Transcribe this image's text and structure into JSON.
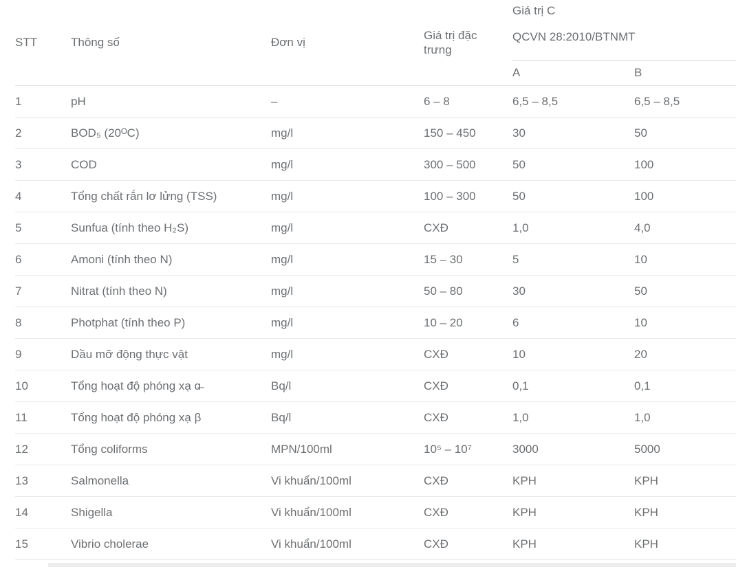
{
  "table": {
    "title_semantic": "Thông số nước thải - QCVN 28:2010/BTNMT",
    "headers": {
      "stt": "STT",
      "param": "Thông số",
      "unit": "Đơn vị",
      "typical": "Giá trị đặc trưng",
      "group_line1": "Giá trị C",
      "group_line2": "QCVN 28:2010/BTNMT",
      "col_a": "A",
      "col_b": "B"
    },
    "rows": [
      {
        "stt": "1",
        "param": "pH",
        "unit": "–",
        "typical": "6 – 8",
        "a": "6,5 – 8,5",
        "b": "6,5 – 8,5"
      },
      {
        "stt": "2",
        "param": "BOD₅ (20ᴼC)",
        "unit": "mg/l",
        "typical": "150 – 450",
        "a": "30",
        "b": "50"
      },
      {
        "stt": "3",
        "param": "COD",
        "unit": "mg/l",
        "typical": "300 – 500",
        "a": "50",
        "b": "100"
      },
      {
        "stt": "4",
        "param": "Tổng chất rắn lơ lửng (TSS)",
        "unit": "mg/l",
        "typical": "100 – 300",
        "a": "50",
        "b": "100"
      },
      {
        "stt": "5",
        "param": "Sunfua (tính theo H₂S)",
        "unit": "mg/l",
        "typical": "CXĐ",
        "a": "1,0",
        "b": "4,0"
      },
      {
        "stt": "6",
        "param": "Amoni (tính theo N)",
        "unit": "mg/l",
        "typical": "15 – 30",
        "a": "5",
        "b": "10"
      },
      {
        "stt": "7",
        "param": "Nitrat (tính theo N)",
        "unit": "mg/l",
        "typical": "50 – 80",
        "a": "30",
        "b": "50"
      },
      {
        "stt": "8",
        "param": "Photphat (tính theo P)",
        "unit": "mg/l",
        "typical": "10 – 20",
        "a": "6",
        "b": "10"
      },
      {
        "stt": "9",
        "param": "Dầu mỡ động thực vật",
        "unit": "mg/l",
        "typical": "CXĐ",
        "a": "10",
        "b": "20"
      },
      {
        "stt": "10",
        "param": "Tổng hoạt độ phóng xạ ɑ̶",
        "unit": "Bq/l",
        "typical": "CXĐ",
        "a": "0,1",
        "b": "0,1"
      },
      {
        "stt": "11",
        "param": "Tổng hoạt độ phóng xạ β",
        "unit": "Bq/l",
        "typical": "CXĐ",
        "a": "1,0",
        "b": "1,0"
      },
      {
        "stt": "12",
        "param": "Tổng coliforms",
        "unit": "MPN/100ml",
        "typical": "10⁵ – 10⁷",
        "a": "3000",
        "b": "5000"
      },
      {
        "stt": "13",
        "param": "Salmonella",
        "unit": "Vi khuẩn/100ml",
        "typical": "CXĐ",
        "a": "KPH",
        "b": "KPH"
      },
      {
        "stt": "14",
        "param": "Shigella",
        "unit": "Vi khuẩn/100ml",
        "typical": "CXĐ",
        "a": "KPH",
        "b": "KPH"
      },
      {
        "stt": "15",
        "param": "Vibrio cholerae",
        "unit": "Vi khuẩn/100ml",
        "typical": "CXĐ",
        "a": "KPH",
        "b": "KPH"
      }
    ],
    "colors": {
      "text": "#6c6f72",
      "row_divider": "#e9e9e9",
      "header_divider": "#e4e4e4",
      "group_underline": "#d9d9d9",
      "bottom_strip": "#ececec",
      "background": "#ffffff"
    }
  }
}
